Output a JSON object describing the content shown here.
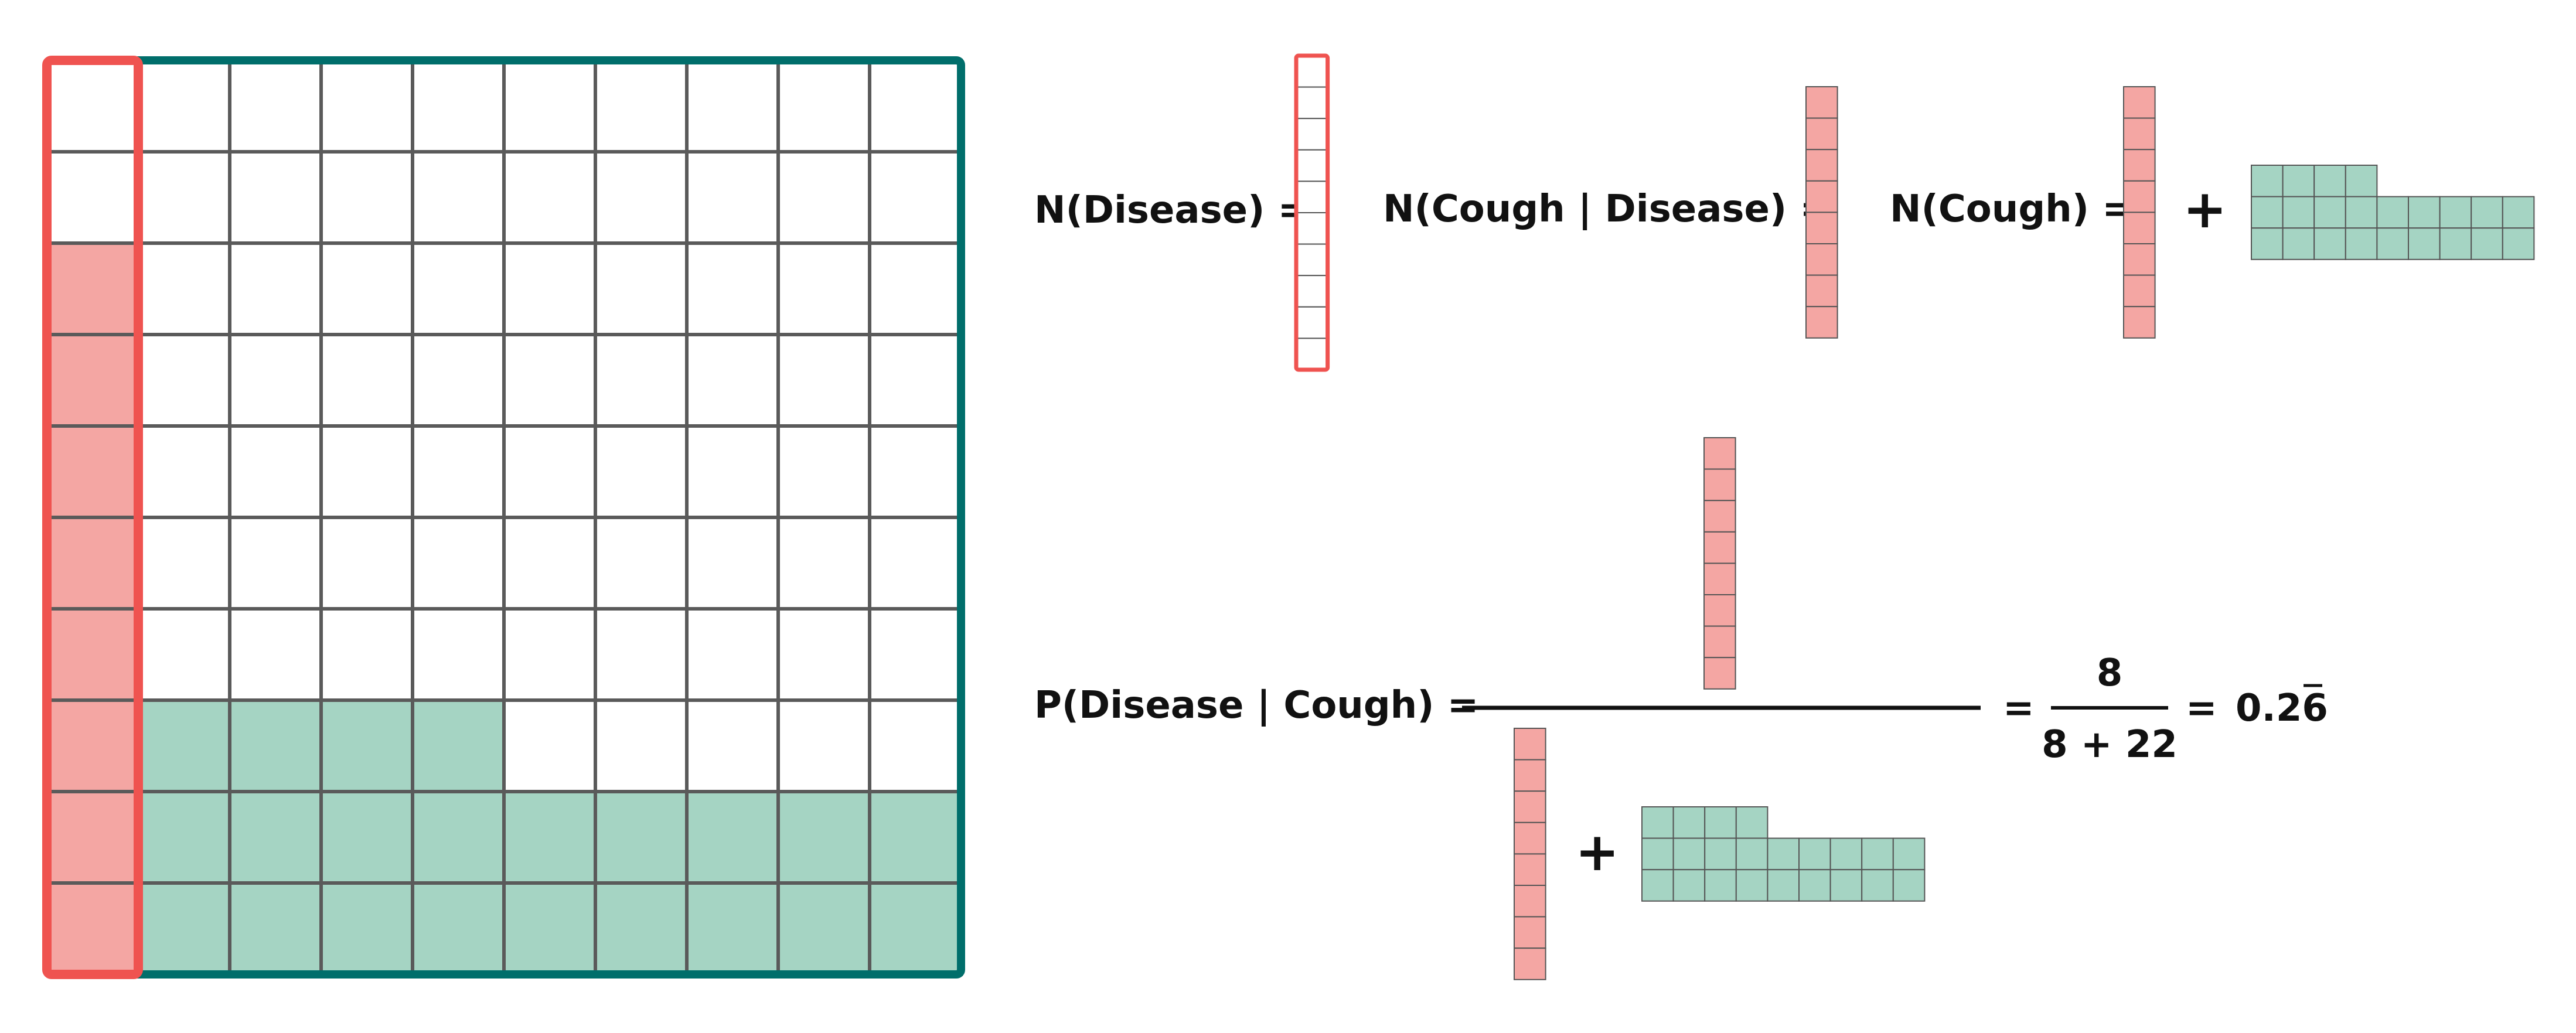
{
  "colors": {
    "disease": "#f4a6a3",
    "disease_outline": "#ef5350",
    "cough_only": "#a5d4c3",
    "frame": "#006e6b",
    "grid_line": "#5a5a5a",
    "text": "#111111"
  },
  "population": {
    "rows": 10,
    "cols": 10,
    "disease_cough": 8,
    "no_disease_cough": 22
  },
  "labels": {
    "n_disease": "N(Disease) =",
    "n_cough_given_disease": "N(Cough | Disease) =",
    "n_cough": "N(Cough) =",
    "plus": "+",
    "p_disease_given_cough": "P(Disease | Cough) =",
    "equals": "=",
    "numerator": "8",
    "denominator": "8 + 22",
    "result_prefix": "0.2",
    "result_repeating": "6"
  },
  "blocks": {
    "n_disease_count": 10,
    "disease_cough_count": 8,
    "no_disease_cough_top_row": 4,
    "no_disease_cough_full_rows": 2,
    "no_disease_cough_row_len": 9
  }
}
